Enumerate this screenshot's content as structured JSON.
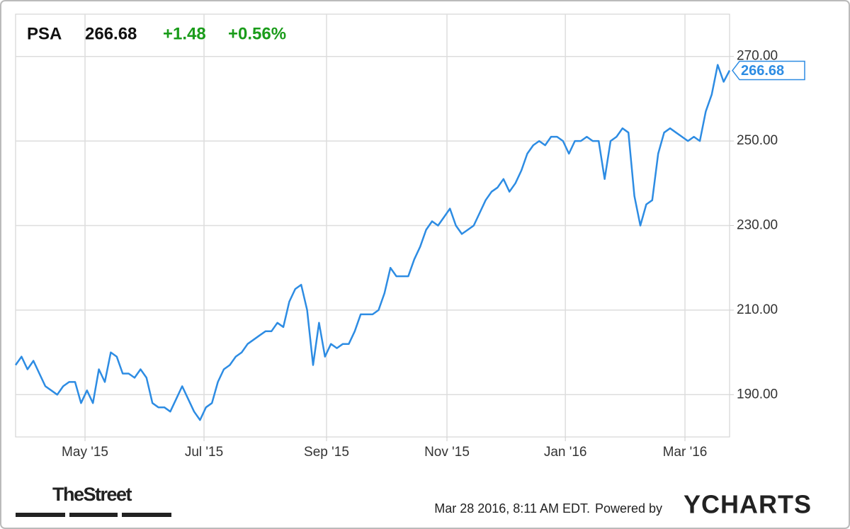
{
  "chart_data": {
    "type": "line",
    "symbol": "PSA",
    "change": "+1.48",
    "change_percent": "+0.56%",
    "values": [
      197,
      199,
      196,
      198,
      195,
      192,
      191,
      190,
      192,
      193,
      193,
      188,
      191,
      188,
      196,
      193,
      200,
      199,
      195,
      195,
      194,
      196,
      194,
      188,
      187,
      187,
      186,
      189,
      192,
      189,
      186,
      184,
      187,
      188,
      193,
      196,
      197,
      199,
      200,
      202,
      203,
      204,
      205,
      205,
      207,
      206,
      212,
      215,
      216,
      210,
      197,
      207,
      199,
      202,
      201,
      202,
      202,
      205,
      209,
      209,
      209,
      210,
      214,
      220,
      218,
      218,
      218,
      222,
      225,
      229,
      231,
      230,
      232,
      234,
      230,
      228,
      229,
      230,
      233,
      236,
      238,
      239,
      241,
      238,
      240,
      243,
      247,
      249,
      250,
      249,
      251,
      251,
      250,
      247,
      250,
      250,
      251,
      250,
      250,
      241,
      250,
      251,
      253,
      252,
      237,
      230,
      235,
      236,
      247,
      252,
      253,
      252,
      251,
      250,
      251,
      250,
      257,
      261,
      268,
      264,
      266.68
    ],
    "color": "#2d8ce3",
    "ylim": [
      180,
      280
    ],
    "yticks": [
      {
        "value": 190,
        "label": "190.00"
      },
      {
        "value": 210,
        "label": "210.00"
      },
      {
        "value": 230,
        "label": "230.00"
      },
      {
        "value": 250,
        "label": "250.00"
      },
      {
        "value": 270,
        "label": "270.00"
      }
    ],
    "xticks": [
      {
        "value": 11.67,
        "label": "May '15"
      },
      {
        "value": 31.67,
        "label": "Jul '15"
      },
      {
        "value": 52.26,
        "label": "Sep '15"
      },
      {
        "value": 72.5,
        "label": "Nov '15"
      },
      {
        "value": 92.4,
        "label": "Jan '16"
      },
      {
        "value": 112.5,
        "label": "Mar '16"
      }
    ],
    "grid": true,
    "timestamp": "Mar 28 2016, 8:11 AM EDT.",
    "powered_by": "Powered by",
    "brand": "YCHARTS",
    "source": "TheStreet"
  }
}
